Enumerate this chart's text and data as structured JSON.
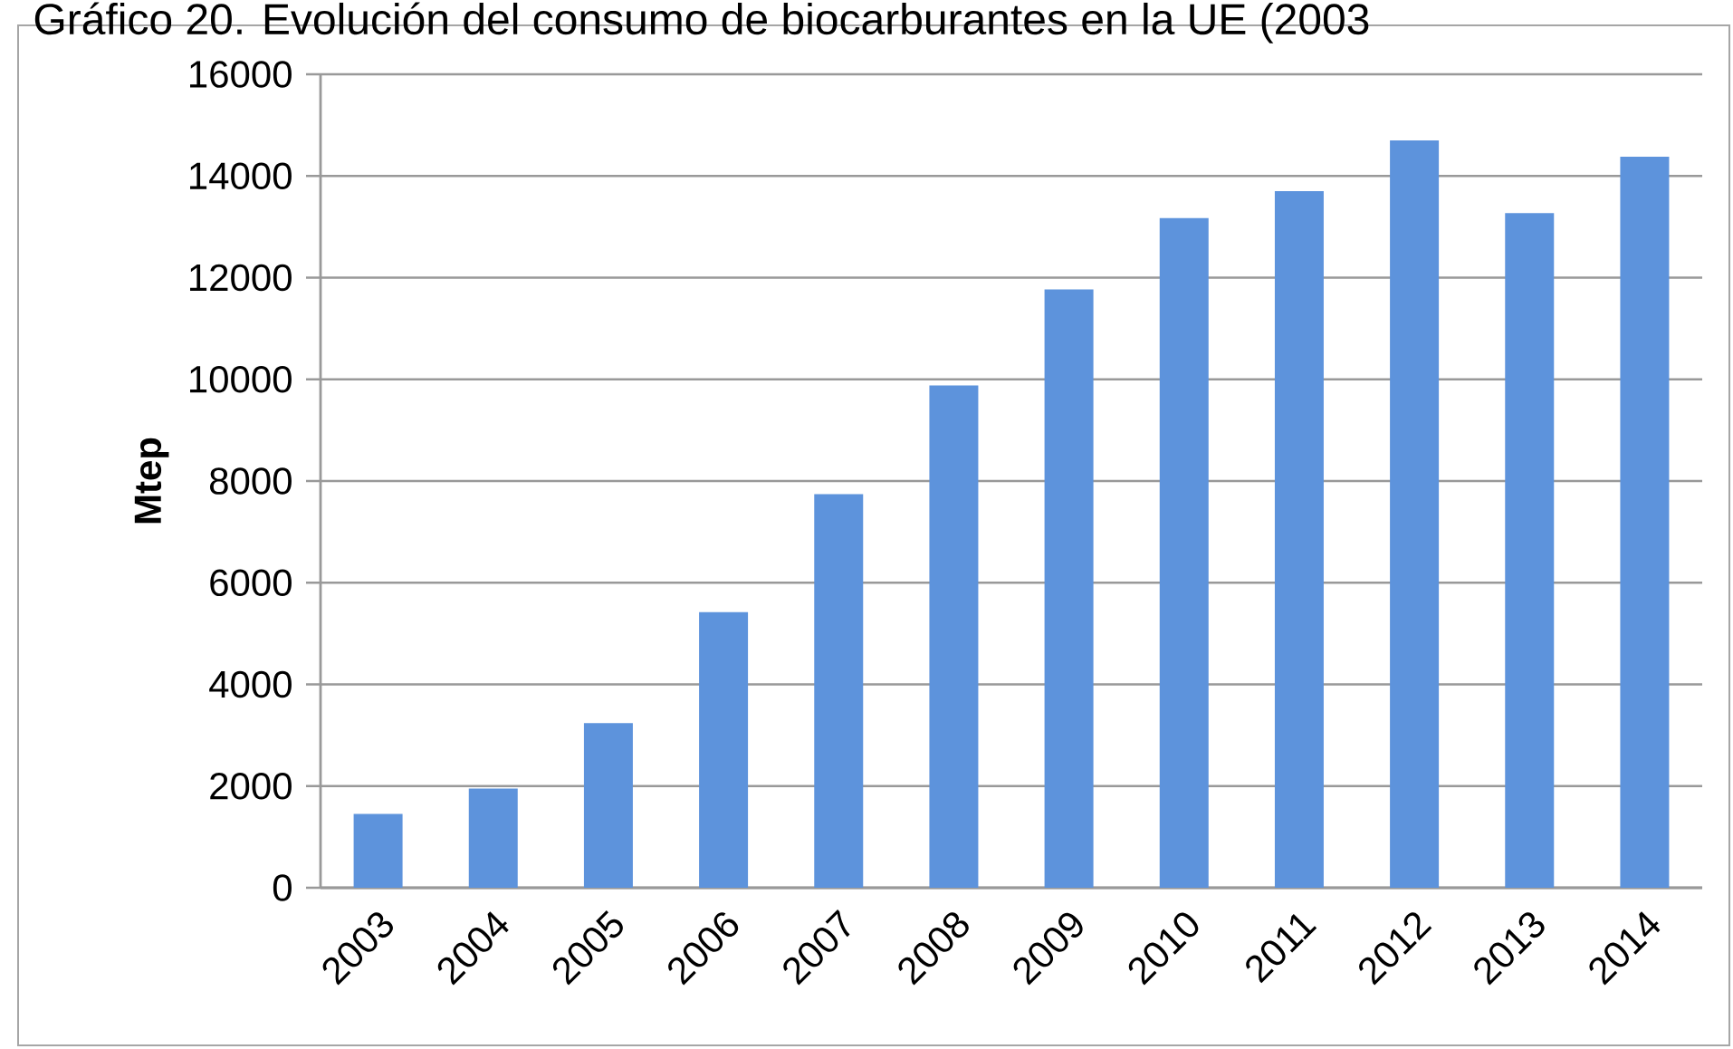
{
  "chart_data": {
    "type": "bar",
    "title": "Gráfico 20. Evolución del consumo de biocarburantes en la UE (2003",
    "ylabel": "Mtep",
    "categories": [
      "2003",
      "2004",
      "2005",
      "2006",
      "2007",
      "2008",
      "2009",
      "2010",
      "2011",
      "2012",
      "2013",
      "2014"
    ],
    "values": [
      1450,
      1950,
      3240,
      5420,
      7740,
      9880,
      11770,
      13170,
      13700,
      14700,
      13270,
      14380
    ],
    "color": "#5d93dc",
    "ylim": [
      0,
      16000
    ],
    "yticks": [
      0,
      2000,
      4000,
      6000,
      8000,
      10000,
      12000,
      14000,
      16000
    ],
    "grid": "y"
  }
}
